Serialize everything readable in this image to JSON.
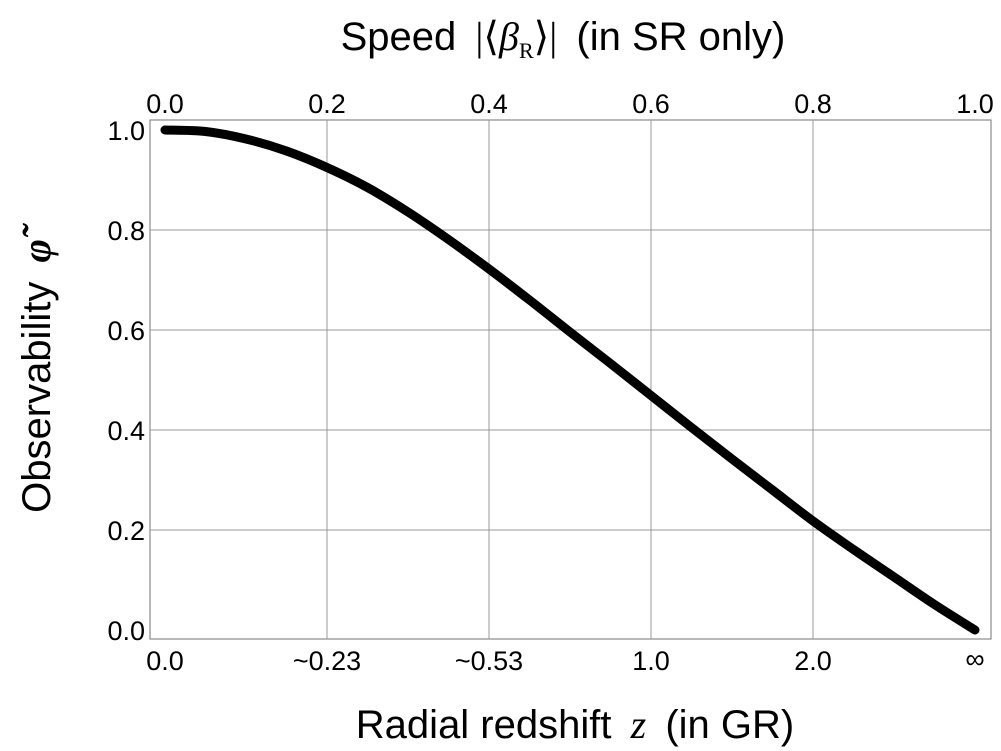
{
  "chart_data": {
    "type": "line",
    "top_axis": {
      "label_prefix": "Speed",
      "label_symbol": "β",
      "label_subscript": "R",
      "label_suffix": "(in SR only)",
      "ticks": [
        {
          "value": 0.0,
          "label": "0.0"
        },
        {
          "value": 0.2,
          "label": "0.2"
        },
        {
          "value": 0.4,
          "label": "0.4"
        },
        {
          "value": 0.6,
          "label": "0.6"
        },
        {
          "value": 0.8,
          "label": "0.8"
        },
        {
          "value": 1.0,
          "label": "1.0"
        }
      ],
      "xlim": [
        0,
        1
      ]
    },
    "bottom_axis": {
      "label_prefix": "Radial redshift",
      "label_symbol": "z",
      "label_suffix": "(in GR)",
      "ticks": [
        {
          "beta": 0.0,
          "label": "0.0"
        },
        {
          "beta": 0.2,
          "label": "~0.23"
        },
        {
          "beta": 0.4,
          "label": "~0.53"
        },
        {
          "beta": 0.6,
          "label": "1.0"
        },
        {
          "beta": 0.8,
          "label": "2.0"
        },
        {
          "beta": 1.0,
          "label": "∞"
        }
      ]
    },
    "y_axis": {
      "label_prefix": "Observability",
      "label_symbol": "φ̃",
      "ticks": [
        {
          "value": 0.0,
          "label": "0.0"
        },
        {
          "value": 0.2,
          "label": "0.2"
        },
        {
          "value": 0.4,
          "label": "0.4"
        },
        {
          "value": 0.6,
          "label": "0.6"
        },
        {
          "value": 0.8,
          "label": "0.8"
        },
        {
          "value": 1.0,
          "label": "1.0"
        }
      ],
      "ylim": [
        0,
        1
      ]
    },
    "grid": true,
    "series": [
      {
        "color": "#000000",
        "x": [
          0.0,
          0.05,
          0.1,
          0.15,
          0.2,
          0.25,
          0.3,
          0.35,
          0.4,
          0.45,
          0.5,
          0.55,
          0.6,
          0.65,
          0.7,
          0.75,
          0.8,
          0.85,
          0.9,
          0.95,
          1.0
        ],
        "y": [
          1.0,
          0.997,
          0.982,
          0.958,
          0.925,
          0.885,
          0.836,
          0.781,
          0.722,
          0.66,
          0.596,
          0.533,
          0.469,
          0.405,
          0.342,
          0.28,
          0.218,
          0.161,
          0.106,
          0.051,
          0.0
        ]
      }
    ]
  }
}
